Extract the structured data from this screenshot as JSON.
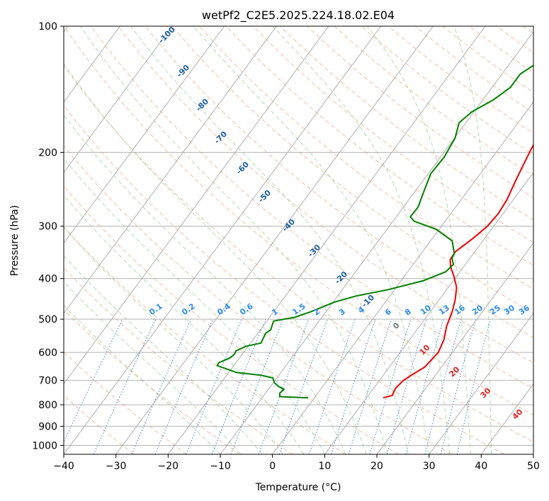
{
  "chart_data": {
    "type": "line",
    "title": "wetPf2_C2E5.2025.224.18.02.E04",
    "xlabel": "Temperature (°C)",
    "ylabel": "Pressure (hPa)",
    "xlim": [
      -40,
      50
    ],
    "ylim": [
      1050,
      100
    ],
    "y_scale": "log",
    "grid": true,
    "x_ticks": [
      -40,
      -30,
      -20,
      -10,
      0,
      10,
      20,
      30,
      40,
      50
    ],
    "y_ticks": [
      100,
      200,
      300,
      400,
      500,
      600,
      700,
      800,
      900,
      1000
    ],
    "colors": {
      "temperature": "#ee0000",
      "dewpoint": "#008000",
      "isotherm": "#a8a8a8",
      "dry_adiabat": "#f4a582",
      "moist_adiabat": "#a6d9a6",
      "mixing_ratio": "#1f77d4",
      "isotherm_label": "#1f5f9f",
      "mixing_ratio_label": "#2b8cea",
      "moist_label": "#d62728"
    },
    "series": [
      {
        "id": "temperature",
        "points": [
          [
            13.2,
            770
          ],
          [
            14.6,
            760
          ],
          [
            14.2,
            730
          ],
          [
            14.6,
            700
          ],
          [
            15.4,
            680
          ],
          [
            16.8,
            650
          ],
          [
            17.3,
            600
          ],
          [
            16.6,
            560
          ],
          [
            15.2,
            520
          ],
          [
            14.2,
            480
          ],
          [
            13.1,
            450
          ],
          [
            11.6,
            420
          ],
          [
            9.5,
            395
          ],
          [
            7.5,
            375
          ],
          [
            6.4,
            360
          ],
          [
            6.3,
            345
          ],
          [
            7.8,
            320
          ],
          [
            8.8,
            300
          ],
          [
            9.1,
            280
          ],
          [
            8.8,
            260
          ],
          [
            7.6,
            230
          ],
          [
            6.4,
            200
          ],
          [
            5.6,
            180
          ],
          [
            6.6,
            165
          ],
          [
            7.2,
            150
          ],
          [
            7.1,
            135
          ],
          [
            7.9,
            125
          ],
          [
            8.0,
            115
          ],
          [
            9.5,
            108
          ],
          [
            11.5,
            100
          ]
        ]
      },
      {
        "id": "dewpoint",
        "points": [
          [
            -1.2,
            770
          ],
          [
            -6.8,
            765
          ],
          [
            -7.3,
            750
          ],
          [
            -7.0,
            735
          ],
          [
            -8.3,
            725
          ],
          [
            -9.7,
            710
          ],
          [
            -10.8,
            690
          ],
          [
            -13.5,
            680
          ],
          [
            -18.5,
            670
          ],
          [
            -23.2,
            645
          ],
          [
            -23.3,
            635
          ],
          [
            -21.8,
            618
          ],
          [
            -21.5,
            605
          ],
          [
            -21.7,
            595
          ],
          [
            -20.4,
            580
          ],
          [
            -18.0,
            570
          ],
          [
            -18.5,
            540
          ],
          [
            -18.0,
            530
          ],
          [
            -18.3,
            520
          ],
          [
            -18.7,
            505
          ],
          [
            -15.2,
            495
          ],
          [
            -12.9,
            480
          ],
          [
            -9.7,
            455
          ],
          [
            -6.4,
            440
          ],
          [
            -1.2,
            425
          ],
          [
            4.2,
            405
          ],
          [
            7.3,
            385
          ],
          [
            7.7,
            370
          ],
          [
            6.6,
            358
          ],
          [
            6.3,
            348
          ],
          [
            4.1,
            325
          ],
          [
            -0.6,
            305
          ],
          [
            -5.9,
            292
          ],
          [
            -7.3,
            285
          ],
          [
            -7.2,
            270
          ],
          [
            -8.2,
            250
          ],
          [
            -9.5,
            225
          ],
          [
            -9.3,
            205
          ],
          [
            -9.9,
            185
          ],
          [
            -11.3,
            170
          ],
          [
            -10.4,
            160
          ],
          [
            -8.0,
            150
          ],
          [
            -6.5,
            140
          ],
          [
            -6.5,
            130
          ],
          [
            -4.3,
            120
          ],
          [
            0.6,
            113
          ],
          [
            2.2,
            105
          ],
          [
            3.4,
            100
          ]
        ]
      }
    ],
    "isotherm_labels": [
      "-100",
      "-90",
      "-80",
      "-70",
      "-60",
      "-50",
      "-40",
      "-30",
      "-20",
      "-10",
      "0",
      "10",
      "20",
      "30",
      "40"
    ],
    "mixing_ratio_labels": [
      "0.1",
      "0.2",
      "0.4",
      "0.6",
      "1",
      "1.5",
      "2",
      "3",
      "4",
      "6",
      "8",
      "10",
      "13",
      "16",
      "20",
      "25",
      "30",
      "36"
    ]
  }
}
